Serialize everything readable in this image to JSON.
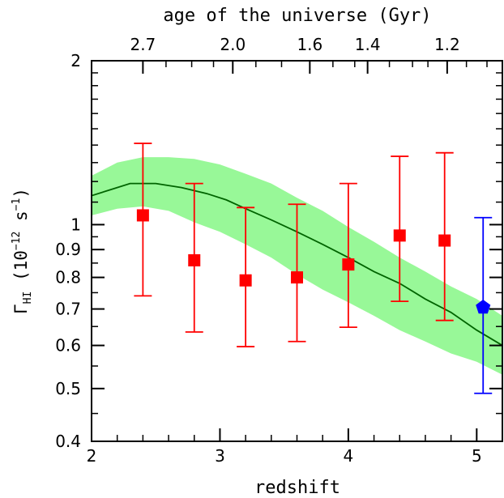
{
  "chart_data": {
    "type": "scatter",
    "xlabel": "redshift",
    "ylabel": {
      "symbol": "Γ",
      "subscript": "HI",
      "units_open": " (10",
      "exponent1": "−12",
      "units_mid": "  s",
      "exponent2": "−1",
      "units_close": ")"
    },
    "top_axis_label": "age of the universe (Gyr)",
    "xlim": [
      2,
      5.2
    ],
    "ylim": [
      0.4,
      2
    ],
    "y_scale": "log",
    "grid": false,
    "x_ticks": [
      {
        "value": 2,
        "label": "2"
      },
      {
        "value": 3,
        "label": "3"
      },
      {
        "value": 4,
        "label": "4"
      },
      {
        "value": 5,
        "label": "5"
      }
    ],
    "x_minor_ticks": [
      2.2,
      2.4,
      2.6,
      2.8,
      3.2,
      3.4,
      3.6,
      3.8,
      4.2,
      4.4,
      4.6,
      4.8,
      5.2
    ],
    "y_ticks": [
      {
        "value": 0.4,
        "label": "0.4"
      },
      {
        "value": 0.5,
        "label": "0.5"
      },
      {
        "value": 0.6,
        "label": "0.6"
      },
      {
        "value": 0.7,
        "label": "0.7"
      },
      {
        "value": 0.8,
        "label": "0.8"
      },
      {
        "value": 0.9,
        "label": "0.9"
      },
      {
        "value": 1,
        "label": "1"
      },
      {
        "value": 2,
        "label": "2"
      }
    ],
    "y_minor_ticks": [
      0.45,
      0.55,
      0.65,
      0.75,
      0.85,
      0.95,
      1.1,
      1.2,
      1.3,
      1.4,
      1.5,
      1.6,
      1.7,
      1.8,
      1.9
    ],
    "top_ticks": [
      {
        "z": 2.4,
        "label": "2.7"
      },
      {
        "z": 3.1,
        "label": "2.0"
      },
      {
        "z": 3.7,
        "label": "1.6"
      },
      {
        "z": 4.15,
        "label": "1.4"
      },
      {
        "z": 4.77,
        "label": "1.2"
      }
    ],
    "top_minor_ticks": [
      2.58,
      2.78,
      2.95,
      3.28,
      3.48,
      3.88,
      4.05,
      4.32,
      4.5,
      4.62,
      4.92,
      5.08
    ],
    "band": {
      "color": "#98f898",
      "x": [
        2.0,
        2.2,
        2.4,
        2.6,
        2.8,
        3.0,
        3.2,
        3.4,
        3.6,
        3.8,
        4.0,
        4.2,
        4.4,
        4.6,
        4.8,
        5.0,
        5.2
      ],
      "upper": [
        1.23,
        1.3,
        1.33,
        1.33,
        1.32,
        1.29,
        1.24,
        1.19,
        1.12,
        1.06,
        0.99,
        0.93,
        0.87,
        0.82,
        0.77,
        0.73,
        0.68
      ],
      "lower": [
        1.04,
        1.07,
        1.08,
        1.06,
        1.01,
        0.97,
        0.92,
        0.87,
        0.81,
        0.76,
        0.72,
        0.68,
        0.64,
        0.61,
        0.58,
        0.56,
        0.53
      ]
    },
    "model_line": {
      "color": "#006400",
      "x": [
        2.0,
        2.15,
        2.3,
        2.5,
        2.7,
        2.9,
        3.05,
        3.2,
        3.4,
        3.6,
        3.8,
        4.0,
        4.2,
        4.4,
        4.6,
        4.8,
        5.0,
        5.2
      ],
      "y": [
        1.13,
        1.16,
        1.19,
        1.19,
        1.17,
        1.14,
        1.11,
        1.07,
        1.02,
        0.97,
        0.92,
        0.87,
        0.82,
        0.78,
        0.73,
        0.69,
        0.64,
        0.6
      ]
    },
    "series": [
      {
        "marker": "square",
        "color": "#ff0000",
        "points": [
          {
            "x": 2.4,
            "y": 1.04,
            "lo": 0.74,
            "hi": 1.41
          },
          {
            "x": 2.8,
            "y": 0.86,
            "lo": 0.635,
            "hi": 1.19
          },
          {
            "x": 3.2,
            "y": 0.79,
            "lo": 0.597,
            "hi": 1.075
          },
          {
            "x": 3.6,
            "y": 0.8,
            "lo": 0.61,
            "hi": 1.09
          },
          {
            "x": 4.0,
            "y": 0.845,
            "lo": 0.648,
            "hi": 1.19
          },
          {
            "x": 4.4,
            "y": 0.955,
            "lo": 0.723,
            "hi": 1.335
          },
          {
            "x": 4.75,
            "y": 0.935,
            "lo": 0.667,
            "hi": 1.355
          }
        ]
      },
      {
        "marker": "pentagon",
        "color": "#0000ff",
        "points": [
          {
            "x": 5.05,
            "y": 0.705,
            "lo": 0.49,
            "hi": 1.03
          }
        ]
      }
    ]
  }
}
